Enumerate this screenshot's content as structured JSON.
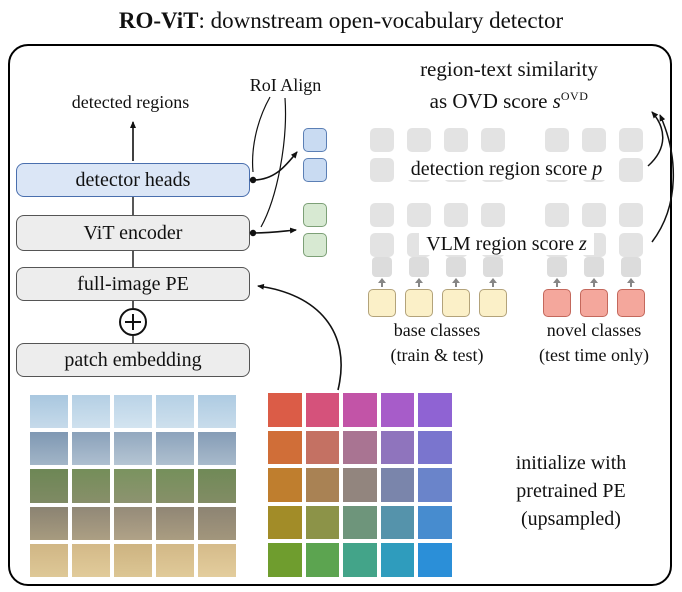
{
  "title": {
    "name_bold": "RO-ViT",
    "rest": ": downstream open-vocabulary detector"
  },
  "pipeline": {
    "detected_regions_label": "detected regions",
    "roi_align_label": "RoI Align",
    "detector_heads_label": "detector heads",
    "vit_encoder_label": "ViT encoder",
    "full_image_pe_label": "full-image PE",
    "plus_symbol": "⊕",
    "patch_embedding_label": "patch embedding"
  },
  "similarity": {
    "line1": "region-text similarity",
    "line2_prefix": "as OVD score ",
    "var": "s",
    "sup": "OVD"
  },
  "detection_score": {
    "prefix": "detection region score ",
    "var": "p",
    "rows": 2,
    "cols_base": 4,
    "cols_novel": 3
  },
  "vlm_score": {
    "prefix": "VLM region score ",
    "var": "z",
    "rows": 2,
    "cols_base": 4,
    "cols_novel": 3
  },
  "region_tokens": {
    "detection_count": 2,
    "vlm_count": 2,
    "detection_fill": "#c9dbf2",
    "detection_border": "#5b7fb5",
    "vlm_fill": "#d7e9d2",
    "vlm_border": "#7da077"
  },
  "classes": {
    "base": {
      "label_line1": "base classes",
      "label_line2": "(train & test)",
      "count": 4,
      "fill": "#fbf0c8",
      "border": "#b3a37a"
    },
    "novel": {
      "label_line1": "novel classes",
      "label_line2": "(test time only)",
      "count": 3,
      "fill": "#f4a79c",
      "border": "#c4685c"
    }
  },
  "pe_note": {
    "line1": "initialize with",
    "line2": "pretrained PE",
    "line3": "(upsampled)"
  },
  "pe_grid": {
    "rows": 5,
    "cols": 5,
    "colors": [
      "#db5c47",
      "#d5527b",
      "#c254a7",
      "#a75cc9",
      "#8f63d3",
      "#d06e38",
      "#c47163",
      "#a97492",
      "#8f74bd",
      "#7a75ce",
      "#bf7e2e",
      "#a98254",
      "#92857e",
      "#7a85ab",
      "#6a84ca",
      "#a28c28",
      "#8c9348",
      "#6e957b",
      "#5593ab",
      "#478ccf",
      "#6f9d2e",
      "#5ca450",
      "#43a489",
      "#2f9cbd",
      "#2b8fd8"
    ]
  },
  "image_grid": {
    "rows": 5,
    "cols": 5,
    "cells": [
      [
        "#a9c7df",
        "#c6daea"
      ],
      [
        "#b4cfe4",
        "#cfe1ee"
      ],
      [
        "#bad3e7",
        "#d3e4f0"
      ],
      [
        "#b5d0e5",
        "#cee0ed"
      ],
      [
        "#aecbe2",
        "#c8dceb"
      ],
      [
        "#7f98b3",
        "#a2b5c7"
      ],
      [
        "#8aa1ba",
        "#aebfd0"
      ],
      [
        "#92a8bf",
        "#b5c5d3"
      ],
      [
        "#8ca3bc",
        "#afc0cf"
      ],
      [
        "#859cb6",
        "#a8bacb"
      ],
      [
        "#6d8755",
        "#7f8a64"
      ],
      [
        "#748e59",
        "#888f6a"
      ],
      [
        "#7a935f",
        "#8d9370"
      ],
      [
        "#75905b",
        "#879069"
      ],
      [
        "#708a57",
        "#828c65"
      ],
      [
        "#8b8372",
        "#a79b7f"
      ],
      [
        "#918877",
        "#ac9f83"
      ],
      [
        "#958b79",
        "#b0a287"
      ],
      [
        "#908675",
        "#aa9d81"
      ],
      [
        "#8d8473",
        "#a2967c"
      ],
      [
        "#d0b685",
        "#dec897"
      ],
      [
        "#d3b988",
        "#e1cb9a"
      ],
      [
        "#cdb381",
        "#dcc694"
      ],
      [
        "#d2b887",
        "#e0ca99"
      ],
      [
        "#d5bb8a",
        "#e3cd9d"
      ]
    ]
  },
  "palette": {
    "token_gray": "#e3e3e3",
    "embed_token_gray": "#dcdcdc",
    "box_gray_fill": "#ededed",
    "box_gray_border": "#555555",
    "box_blue_fill": "#dbe6f6",
    "box_blue_border": "#4a6fae",
    "arrow_black": "#111111",
    "arrow_gray": "#868686",
    "frame_border": "#000000"
  }
}
